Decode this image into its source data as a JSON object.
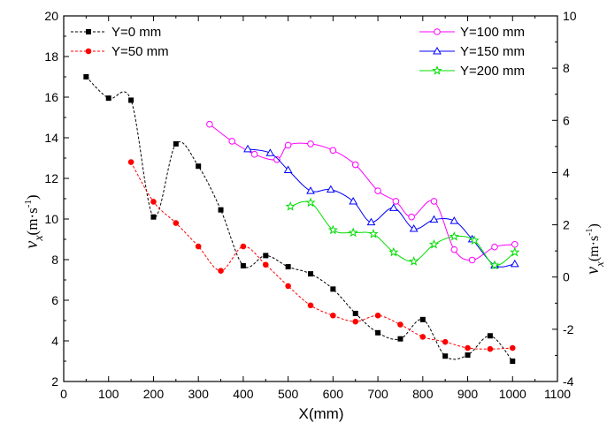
{
  "chart_data": {
    "type": "scatter",
    "title": "",
    "xlabel": "X(mm)",
    "ylabel_left": {
      "symbol": "v",
      "subscript": "x",
      "unit": "(m·s",
      "exp": "-1",
      "close": ")"
    },
    "ylabel_right": {
      "symbol": "v",
      "subscript": "x",
      "unit": "(m·s",
      "exp": "-1",
      "close": ")"
    },
    "xlim": [
      0,
      1100
    ],
    "ylim_left": [
      2,
      20
    ],
    "ylim_right": [
      -4,
      10
    ],
    "x_ticks": [
      "0",
      "100",
      "200",
      "300",
      "400",
      "500",
      "600",
      "700",
      "800",
      "900",
      "1000",
      "1100"
    ],
    "y_left_ticks": [
      "2",
      "4",
      "6",
      "8",
      "10",
      "12",
      "14",
      "16",
      "18",
      "20"
    ],
    "y_right_ticks": [
      "-4",
      "-2",
      "0",
      "2",
      "4",
      "6",
      "8",
      "10"
    ],
    "legend_placement": [
      "top-left",
      "top-right"
    ],
    "grid": false,
    "series": [
      {
        "name": "Y=0 mm",
        "axis": "left",
        "color": "#000000",
        "marker": "square",
        "line_style": "dashed",
        "legend_group": 0,
        "x": [
          50,
          100,
          150,
          200,
          250,
          300,
          350,
          400,
          450,
          500,
          550,
          600,
          650,
          700,
          750,
          800,
          850,
          900,
          950,
          1000
        ],
        "y": [
          17.0,
          15.95,
          15.85,
          10.1,
          13.7,
          12.6,
          10.45,
          7.7,
          8.2,
          7.65,
          7.3,
          6.55,
          5.35,
          4.4,
          4.1,
          5.05,
          3.25,
          3.3,
          4.25,
          3.0
        ]
      },
      {
        "name": "Y=50 mm",
        "axis": "left",
        "color": "#ff0000",
        "marker": "circle",
        "line_style": "dashed",
        "legend_group": 0,
        "x": [
          150,
          200,
          250,
          300,
          350,
          400,
          450,
          500,
          550,
          600,
          650,
          700,
          750,
          800,
          850,
          900,
          950,
          1000
        ],
        "y": [
          12.8,
          10.85,
          9.8,
          8.65,
          7.45,
          8.65,
          7.75,
          6.7,
          5.75,
          5.25,
          4.95,
          5.25,
          4.8,
          4.2,
          3.95,
          3.65,
          3.6,
          3.65
        ]
      },
      {
        "name": "Y=100 mm",
        "axis": "right",
        "color": "#ff00ff",
        "marker": "open-circle",
        "line_style": "solid",
        "legend_group": 1,
        "x": [
          325,
          375,
          425,
          475,
          500,
          550,
          600,
          650,
          700,
          740,
          775,
          825,
          870,
          910,
          960,
          1005
        ],
        "y": [
          5.85,
          5.2,
          4.7,
          4.5,
          5.05,
          5.1,
          4.85,
          4.3,
          3.3,
          2.9,
          2.3,
          2.9,
          1.05,
          0.65,
          1.15,
          1.25
        ]
      },
      {
        "name": "Y=150 mm",
        "axis": "right",
        "color": "#0000ff",
        "marker": "open-triangle",
        "line_style": "solid",
        "legend_group": 1,
        "x": [
          410,
          460,
          500,
          550,
          595,
          645,
          685,
          735,
          780,
          825,
          870,
          910,
          960,
          1005
        ],
        "y": [
          4.9,
          4.75,
          4.1,
          3.3,
          3.35,
          2.9,
          2.1,
          2.65,
          1.85,
          2.2,
          2.15,
          1.45,
          0.45,
          0.5
        ]
      },
      {
        "name": "Y=200 mm",
        "axis": "right",
        "color": "#00dd00",
        "marker": "open-star",
        "line_style": "solid",
        "legend_group": 1,
        "x": [
          505,
          550,
          600,
          645,
          690,
          735,
          780,
          825,
          870,
          915,
          960,
          1005
        ],
        "y": [
          2.7,
          2.85,
          1.8,
          1.7,
          1.65,
          0.95,
          0.6,
          1.25,
          1.55,
          1.4,
          0.45,
          0.95
        ]
      }
    ]
  }
}
